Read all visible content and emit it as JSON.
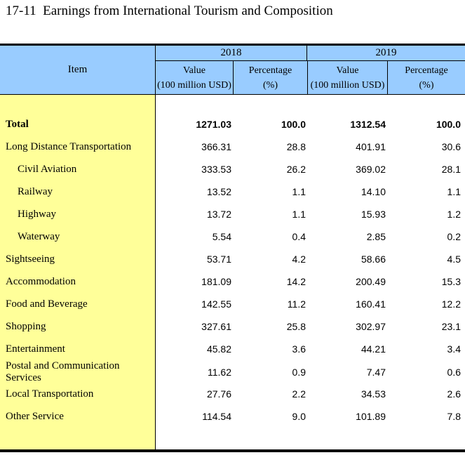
{
  "title": "17-11  Earnings from International Tourism and Composition",
  "colors": {
    "header_bg": "#99ccff",
    "item_column_bg": "#ffff99",
    "rule": "#000000"
  },
  "table": {
    "item_header": "Item",
    "year_groups": [
      {
        "year": "2018",
        "value_label": "Value",
        "value_unit": "(100 million USD)",
        "pct_label": "Percentage",
        "pct_unit": "(%)"
      },
      {
        "year": "2019",
        "value_label": "Value",
        "value_unit": "(100 million USD)",
        "pct_label": "Percentage",
        "pct_unit": "(%)"
      }
    ],
    "rows": [
      {
        "label": "Total",
        "v2018": "1271.03",
        "p2018": "100.0",
        "v2019": "1312.54",
        "p2019": "100.0"
      },
      {
        "label": "Long Distance Transportation",
        "v2018": "366.31",
        "p2018": "28.8",
        "v2019": "401.91",
        "p2019": "30.6"
      },
      {
        "label": "Civil Aviation",
        "v2018": "333.53",
        "p2018": "26.2",
        "v2019": "369.02",
        "p2019": "28.1"
      },
      {
        "label": "Railway",
        "v2018": "13.52",
        "p2018": "1.1",
        "v2019": "14.10",
        "p2019": "1.1"
      },
      {
        "label": "Highway",
        "v2018": "13.72",
        "p2018": "1.1",
        "v2019": "15.93",
        "p2019": "1.2"
      },
      {
        "label": "Waterway",
        "v2018": "5.54",
        "p2018": "0.4",
        "v2019": "2.85",
        "p2019": "0.2"
      },
      {
        "label": "Sightseeing",
        "v2018": "53.71",
        "p2018": "4.2",
        "v2019": "58.66",
        "p2019": "4.5"
      },
      {
        "label": "Accommodation",
        "v2018": "181.09",
        "p2018": "14.2",
        "v2019": "200.49",
        "p2019": "15.3"
      },
      {
        "label": "Food and Beverage",
        "v2018": "142.55",
        "p2018": "11.2",
        "v2019": "160.41",
        "p2019": "12.2"
      },
      {
        "label": "Shopping",
        "v2018": "327.61",
        "p2018": "25.8",
        "v2019": "302.97",
        "p2019": "23.1"
      },
      {
        "label": "Entertainment",
        "v2018": "45.82",
        "p2018": "3.6",
        "v2019": "44.21",
        "p2019": "3.4"
      },
      {
        "label": "Postal and Communication Services",
        "v2018": "11.62",
        "p2018": "0.9",
        "v2019": "7.47",
        "p2019": "0.6"
      },
      {
        "label": "Local Transportation",
        "v2018": "27.76",
        "p2018": "2.2",
        "v2019": "34.53",
        "p2019": "2.6"
      },
      {
        "label": "Other Service",
        "v2018": "114.54",
        "p2018": "9.0",
        "v2019": "101.89",
        "p2019": "7.8"
      }
    ]
  }
}
